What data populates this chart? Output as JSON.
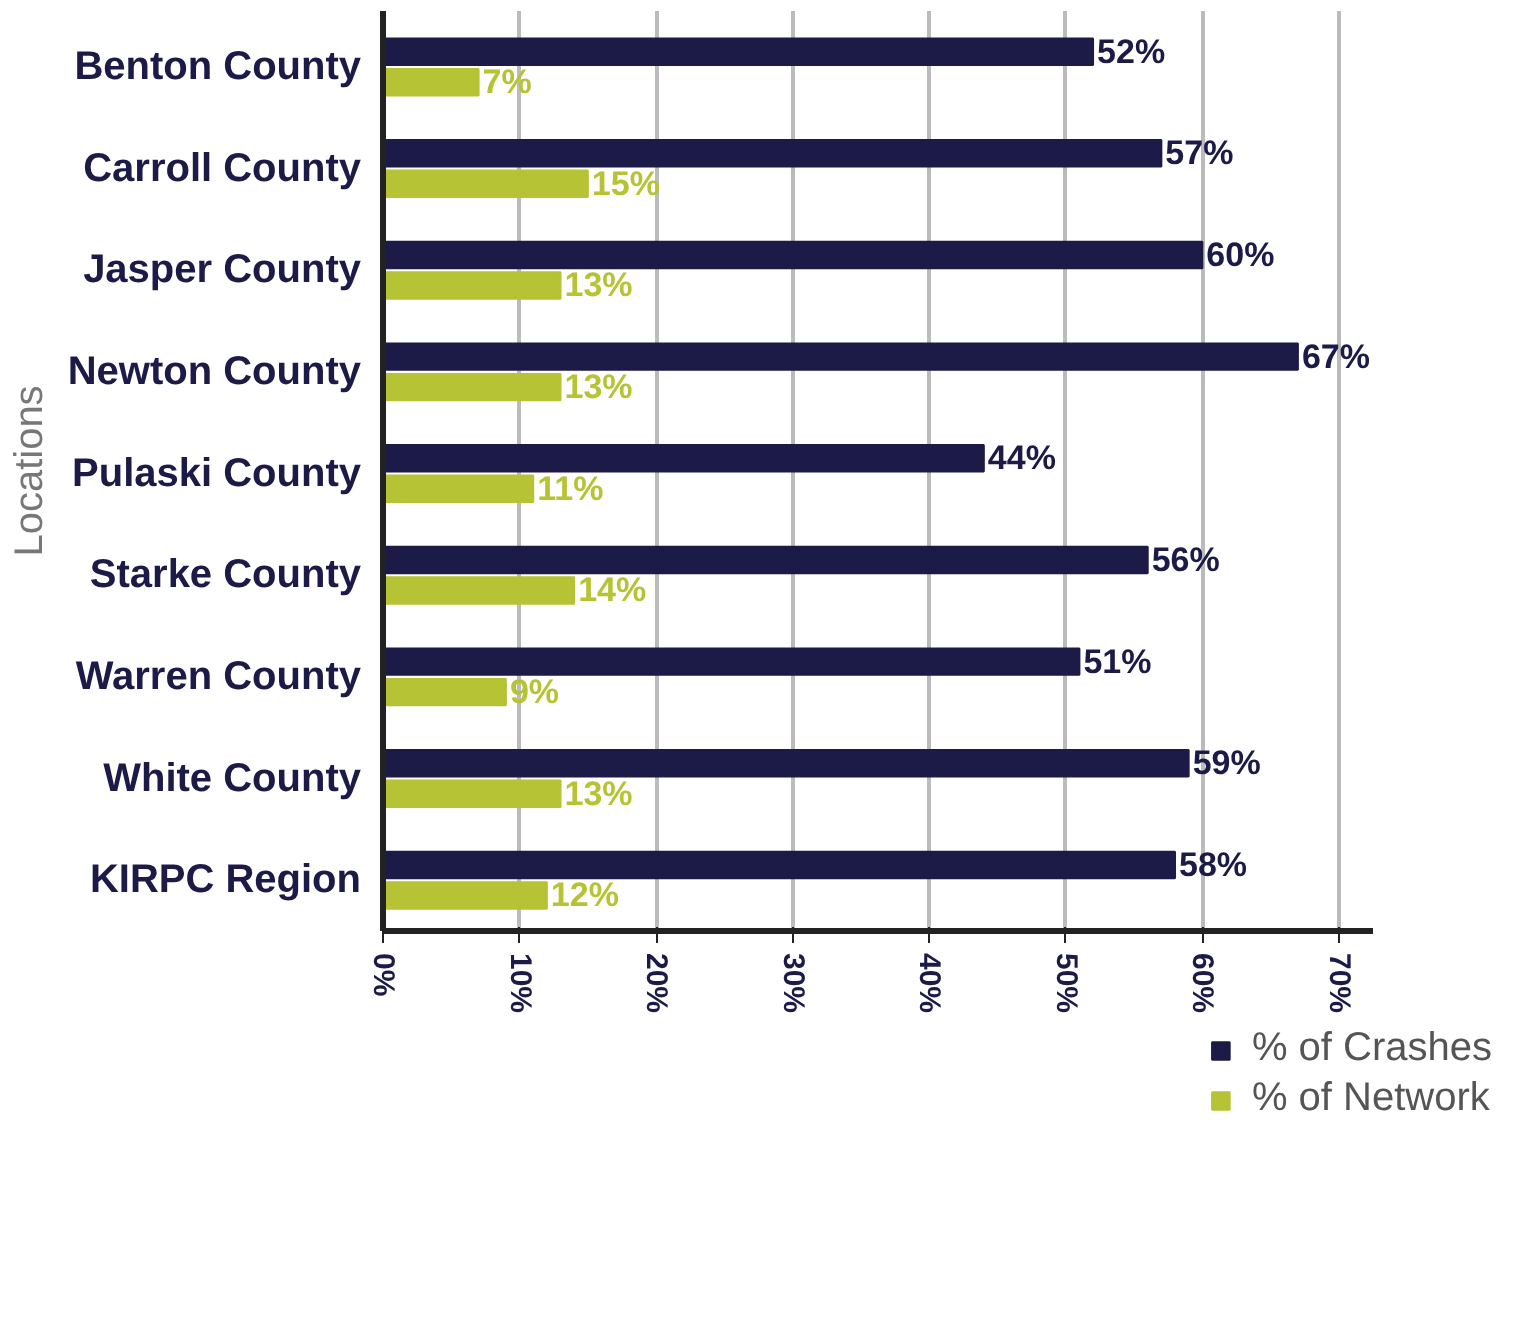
{
  "chart_data": {
    "type": "bar",
    "orientation": "horizontal",
    "ylabel": "Locations",
    "categories": [
      "Benton County",
      "Carroll County",
      "Jasper County",
      "Newton County",
      "Pulaski County",
      "Starke County",
      "Warren County",
      "White County",
      "KIRPC Region"
    ],
    "series": [
      {
        "name": "% of Crashes",
        "color": "#1c1a47",
        "values": [
          52,
          57,
          60,
          67,
          44,
          56,
          51,
          59,
          58
        ],
        "value_labels": [
          "52%",
          "57%",
          "60%",
          "67%",
          "44%",
          "56%",
          "51%",
          "59%",
          "58%"
        ]
      },
      {
        "name": "% of Network",
        "color": "#b5c334",
        "values": [
          7,
          15,
          13,
          13,
          11,
          14,
          9,
          13,
          12
        ],
        "value_labels": [
          "7%",
          "15%",
          "13%",
          "13%",
          "11%",
          "14%",
          "9%",
          "13%",
          "12%"
        ]
      }
    ],
    "xlim": [
      0,
      72.5
    ],
    "xticks": [
      {
        "value": 0,
        "label": "0%"
      },
      {
        "value": 10,
        "label": "10%"
      },
      {
        "value": 20,
        "label": "20%"
      },
      {
        "value": 30,
        "label": "30%"
      },
      {
        "value": 40,
        "label": "40%"
      },
      {
        "value": 50,
        "label": "50%"
      },
      {
        "value": 60,
        "label": "60%"
      },
      {
        "value": 70,
        "label": "70%"
      }
    ],
    "grid": "x",
    "legend": "bottom right"
  }
}
